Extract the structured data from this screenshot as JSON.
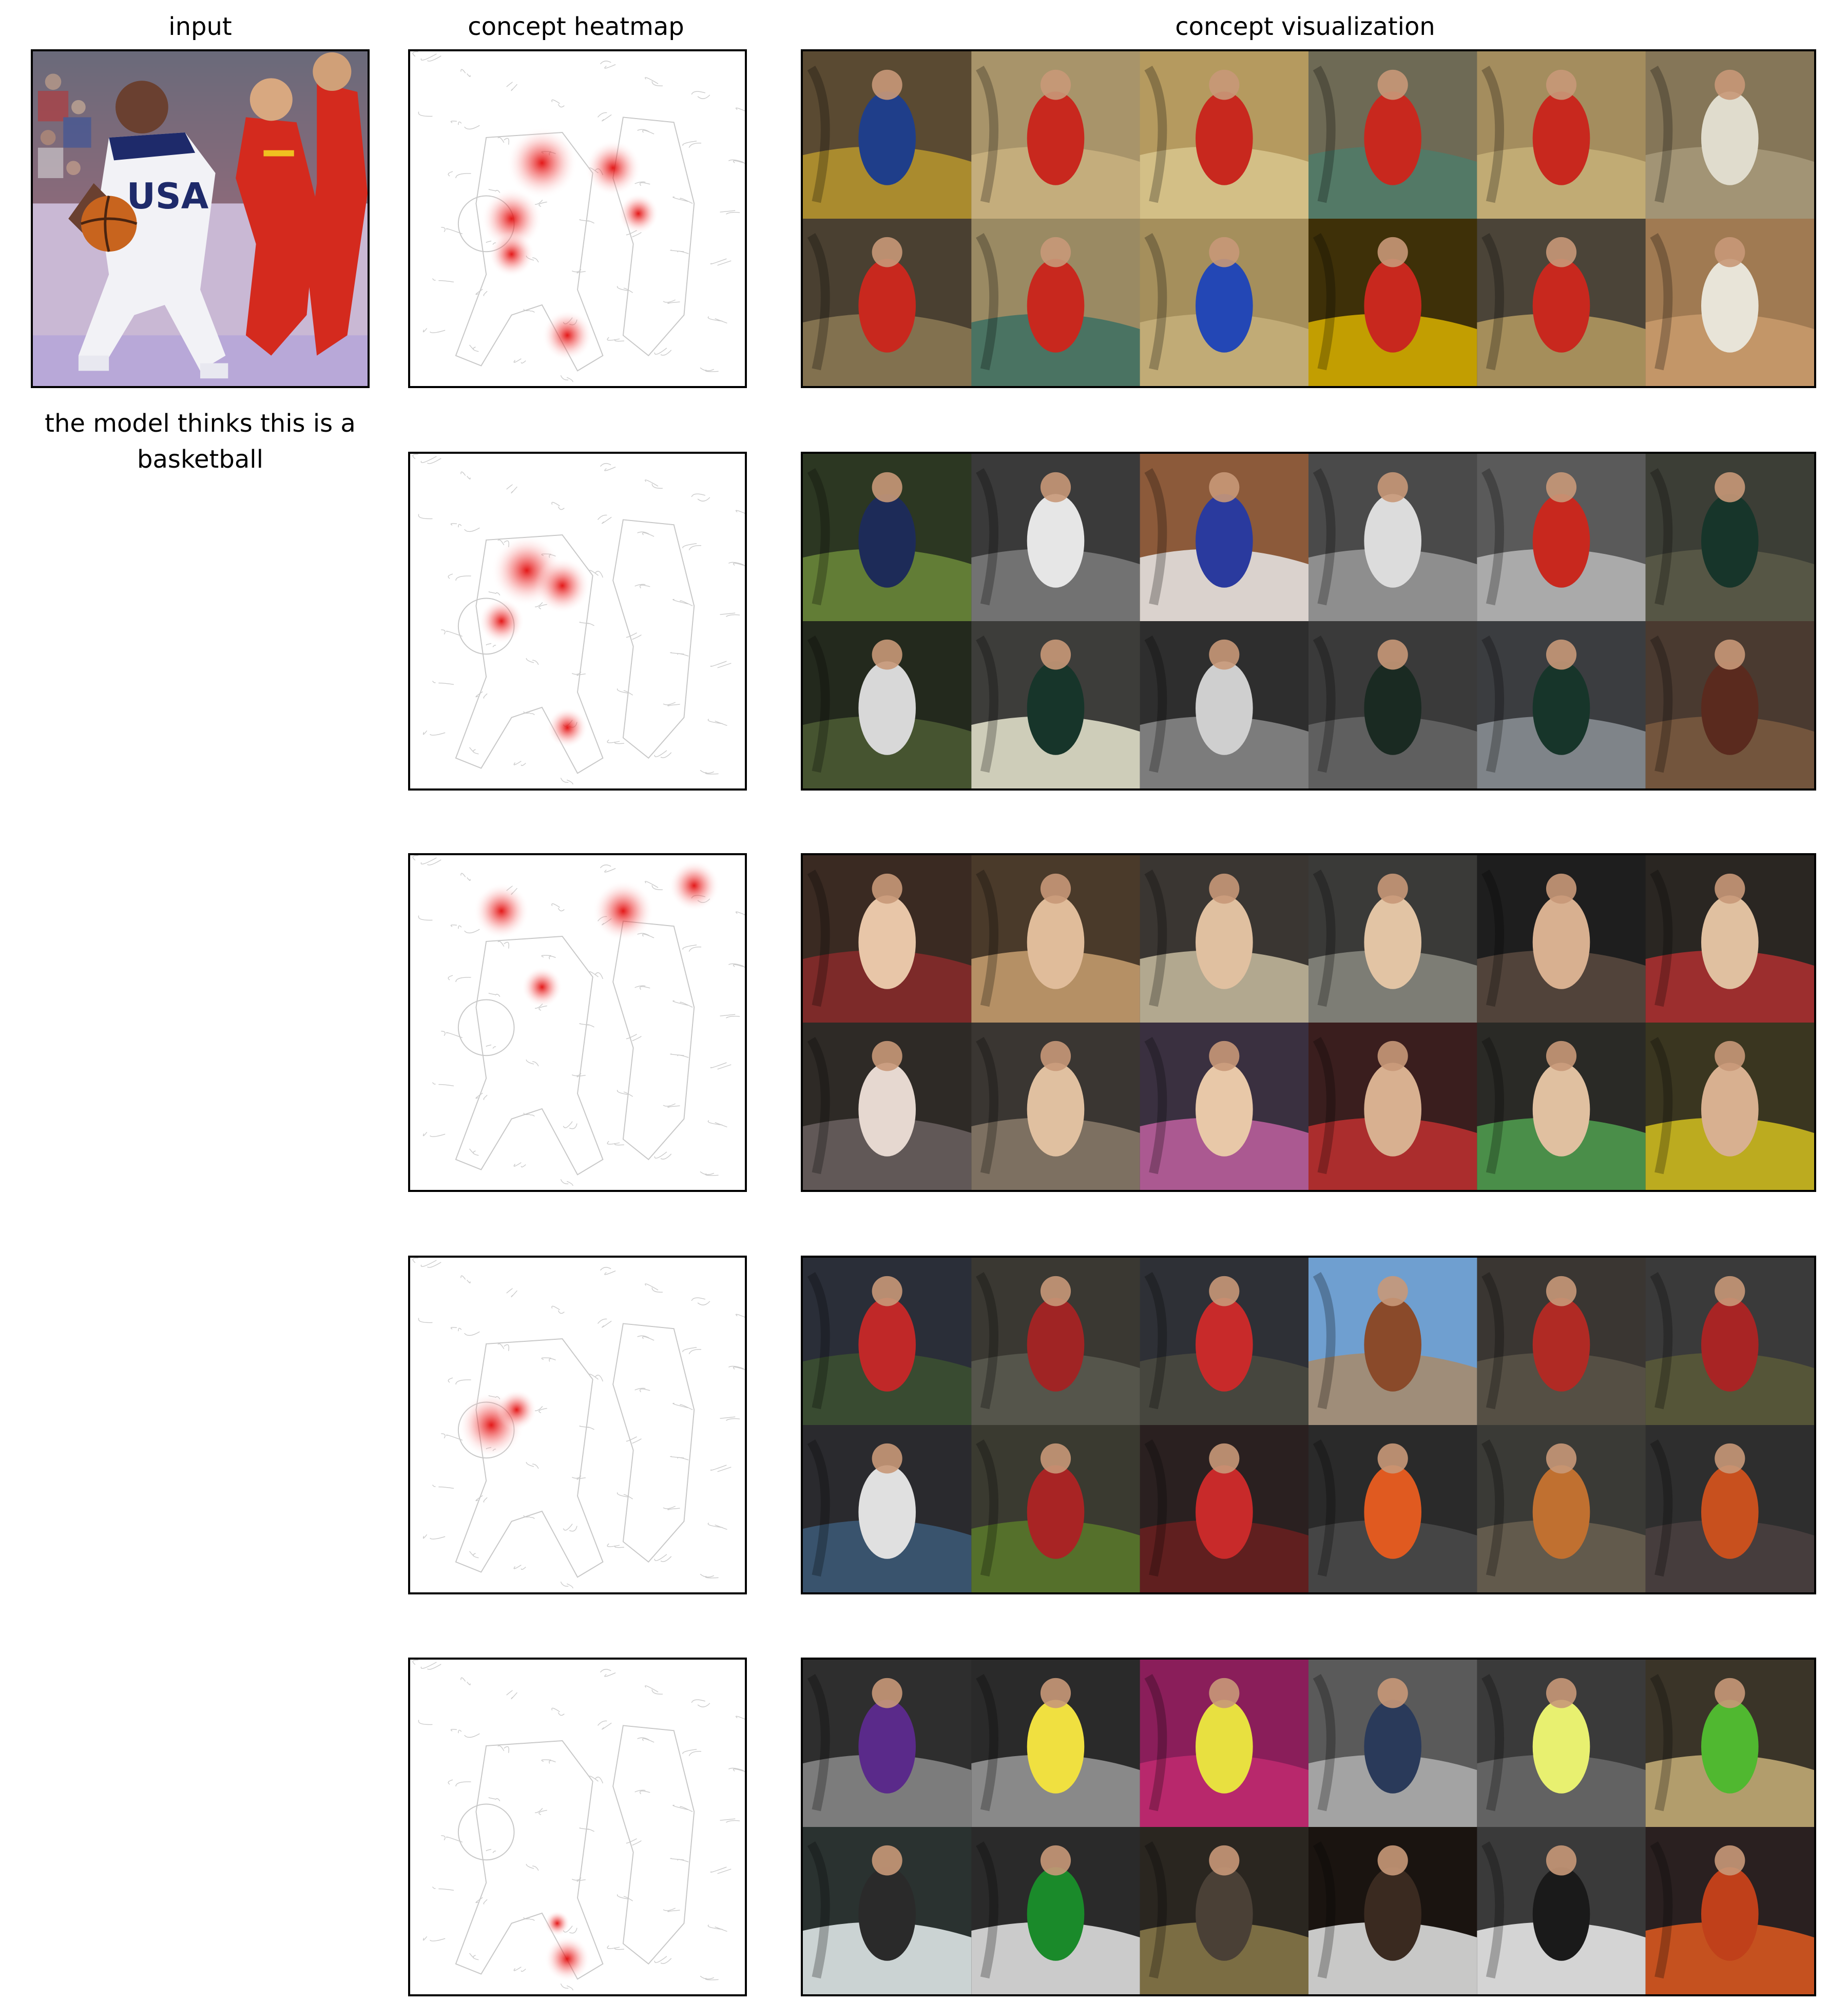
{
  "headers": {
    "input": "input",
    "heatmap": "concept heatmap",
    "visualization": "concept visualization"
  },
  "caption": {
    "line1": "the model thinks this is a",
    "line2": "basketball"
  },
  "jersey_text": "USA",
  "concepts": [
    {
      "heat_focus": "players-and-ball",
      "tiles": [
        {
          "bg": "#5a4a32",
          "accent": "#b8962e",
          "person": "#1f3e8a"
        },
        {
          "bg": "#a8946a",
          "accent": "#c9b27f",
          "person": "#c8281e"
        },
        {
          "bg": "#b59a5f",
          "accent": "#d8c58d",
          "person": "#c8281e"
        },
        {
          "bg": "#6e6a55",
          "accent": "#4f7b6a",
          "person": "#c8281e"
        },
        {
          "bg": "#a48d5e",
          "accent": "#c7b078",
          "person": "#c8281e"
        },
        {
          "bg": "#857658",
          "accent": "#a79a7a",
          "person": "#e0dccd"
        },
        {
          "bg": "#4a4031",
          "accent": "#8c7a55",
          "person": "#c8281e"
        },
        {
          "bg": "#9a8a63",
          "accent": "#3c6f62",
          "person": "#c8281e"
        },
        {
          "bg": "#a58f5c",
          "accent": "#c6b07a",
          "person": "#2347b5"
        },
        {
          "bg": "#3e3008",
          "accent": "#d9b100",
          "person": "#c8281e"
        },
        {
          "bg": "#4b4438",
          "accent": "#b59b62",
          "person": "#c8281e"
        },
        {
          "bg": "#a07a52",
          "accent": "#c99b6c",
          "person": "#e8e4d8"
        }
      ]
    },
    {
      "heat_focus": "jersey",
      "tiles": [
        {
          "bg": "#2c3722",
          "accent": "#6c8a3a",
          "person": "#1d2b58"
        },
        {
          "bg": "#3a3a3a",
          "accent": "#7d7d7d",
          "person": "#e6e6e6"
        },
        {
          "bg": "#8c5a3a",
          "accent": "#e8e8e8",
          "person": "#2a3a9e"
        },
        {
          "bg": "#4a4a4a",
          "accent": "#9a9a9a",
          "person": "#dcdcdc"
        },
        {
          "bg": "#5a5a5a",
          "accent": "#b8b8b8",
          "person": "#c8281e"
        },
        {
          "bg": "#3c3e36",
          "accent": "#5a5a48",
          "person": "#17352a"
        },
        {
          "bg": "#23291d",
          "accent": "#4c5c34",
          "person": "#d8d8d8"
        },
        {
          "bg": "#3d3d3a",
          "accent": "#e8e6d0",
          "person": "#17352a"
        },
        {
          "bg": "#2e2e2e",
          "accent": "#8a8a8a",
          "person": "#cfcfcf"
        },
        {
          "bg": "#3a3a3a",
          "accent": "#666666",
          "person": "#1a2a22"
        },
        {
          "bg": "#3b3d40",
          "accent": "#8c9096",
          "person": "#17352a"
        },
        {
          "bg": "#4a3a30",
          "accent": "#7a5a40",
          "person": "#5a2a1e"
        }
      ]
    },
    {
      "heat_focus": "faces",
      "tiles": [
        {
          "bg": "#3a2a22",
          "accent": "#8a2a2a",
          "person": "#e8c6a8"
        },
        {
          "bg": "#4a3a2a",
          "accent": "#c8a070",
          "person": "#e0bc9a"
        },
        {
          "bg": "#3a3632",
          "accent": "#c8bca0",
          "person": "#e0c0a0"
        },
        {
          "bg": "#3a3a38",
          "accent": "#8a8a80",
          "person": "#e2c4a4"
        },
        {
          "bg": "#1e1e1e",
          "accent": "#5a4a40",
          "person": "#d8b090"
        },
        {
          "bg": "#2a2622",
          "accent": "#b03030",
          "person": "#e0c0a0"
        },
        {
          "bg": "#2e2a26",
          "accent": "#6a6060",
          "person": "#e6d8d0"
        },
        {
          "bg": "#3a3632",
          "accent": "#8a7a6a",
          "person": "#e0c0a0"
        },
        {
          "bg": "#3a3040",
          "accent": "#c060a0",
          "person": "#e8c8a8"
        },
        {
          "bg": "#3a1e1e",
          "accent": "#c03030",
          "person": "#d8b090"
        },
        {
          "bg": "#2a2a26",
          "accent": "#50a050",
          "person": "#e0c0a0"
        },
        {
          "bg": "#3a3620",
          "accent": "#d4c020",
          "person": "#d8b090"
        }
      ]
    },
    {
      "heat_focus": "ball",
      "tiles": [
        {
          "bg": "#2a2e38",
          "accent": "#3c5030",
          "person": "#c02828"
        },
        {
          "bg": "#3a3832",
          "accent": "#5a5a50",
          "person": "#a02424"
        },
        {
          "bg": "#2e3036",
          "accent": "#4a4a40",
          "person": "#c82a2a"
        },
        {
          "bg": "#6f9fd0",
          "accent": "#a88a6a",
          "person": "#8a4a2a"
        },
        {
          "bg": "#3a3632",
          "accent": "#5a5448",
          "person": "#b02a24"
        },
        {
          "bg": "#3a3a3a",
          "accent": "#5a5a38",
          "person": "#a82424"
        },
        {
          "bg": "#2a2a2e",
          "accent": "#3c5a78",
          "person": "#e0e0e0"
        },
        {
          "bg": "#3a3a30",
          "accent": "#5a7a2a",
          "person": "#a82424"
        },
        {
          "bg": "#2a2020",
          "accent": "#6a2020",
          "person": "#c82a2a"
        },
        {
          "bg": "#2a2a2a",
          "accent": "#4a4a4a",
          "person": "#e05a20"
        },
        {
          "bg": "#3a3a36",
          "accent": "#6a6050",
          "person": "#c07030"
        },
        {
          "bg": "#2e2e2e",
          "accent": "#4a4040",
          "person": "#c8501e"
        }
      ]
    },
    {
      "heat_focus": "shoes",
      "tiles": [
        {
          "bg": "#2e2e2e",
          "accent": "#8a8a8a",
          "person": "#5a2a8a"
        },
        {
          "bg": "#2a2a2a",
          "accent": "#9a9a9a",
          "person": "#f0e040"
        },
        {
          "bg": "#8a1e5a",
          "accent": "#c02a70",
          "person": "#e8e040"
        },
        {
          "bg": "#5a5a5a",
          "accent": "#b0b0b0",
          "person": "#2a3a5a"
        },
        {
          "bg": "#3a3a3a",
          "accent": "#6a6a6a",
          "person": "#e8f070"
        },
        {
          "bg": "#3a3428",
          "accent": "#c8b078",
          "person": "#50b830"
        },
        {
          "bg": "#2a3230",
          "accent": "#e8f0f0",
          "person": "#2a2a2a"
        },
        {
          "bg": "#2a2a2a",
          "accent": "#e8e8e8",
          "person": "#1a8a2a"
        },
        {
          "bg": "#2a2620",
          "accent": "#8a7a4a",
          "person": "#4a4036"
        },
        {
          "bg": "#1a1410",
          "accent": "#e8e8e8",
          "person": "#3a2a20"
        },
        {
          "bg": "#3a3a3a",
          "accent": "#f0f0f0",
          "person": "#1a1a1a"
        },
        {
          "bg": "#2a2020",
          "accent": "#e05a20",
          "person": "#c0401a"
        }
      ]
    }
  ]
}
